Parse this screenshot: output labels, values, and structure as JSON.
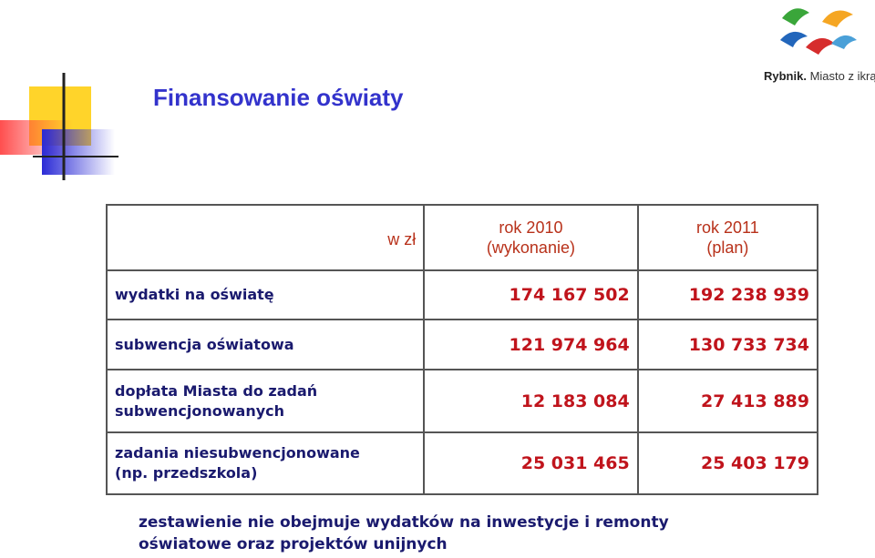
{
  "header": {
    "title": "Finansowanie oświaty",
    "logo_brand": "Rybnik.",
    "logo_slogan": "Miasto z ikrą."
  },
  "table": {
    "unit": "w zł",
    "columns": [
      [
        "rok 2010",
        "(wykonanie)"
      ],
      [
        "rok 2011",
        "(plan)"
      ]
    ],
    "rows": [
      {
        "label": [
          "wydatki na oświatę"
        ],
        "values": [
          "174 167 502",
          "192 238 939"
        ]
      },
      {
        "label": [
          "subwencja oświatowa"
        ],
        "values": [
          "121 974 964",
          "130 733 734"
        ]
      },
      {
        "label": [
          "dopłata Miasta do zadań",
          "subwencjonowanych"
        ],
        "values": [
          "12 183 084",
          "27 413 889"
        ]
      },
      {
        "label": [
          "zadania niesubwencjonowane",
          "(np. przedszkola)"
        ],
        "values": [
          "25 031 465",
          "25 403 179"
        ]
      }
    ]
  },
  "footnote": [
    "zestawienie nie obejmuje wydatków na inwestycje i remonty",
    "oświatowe oraz projektów unijnych"
  ]
}
